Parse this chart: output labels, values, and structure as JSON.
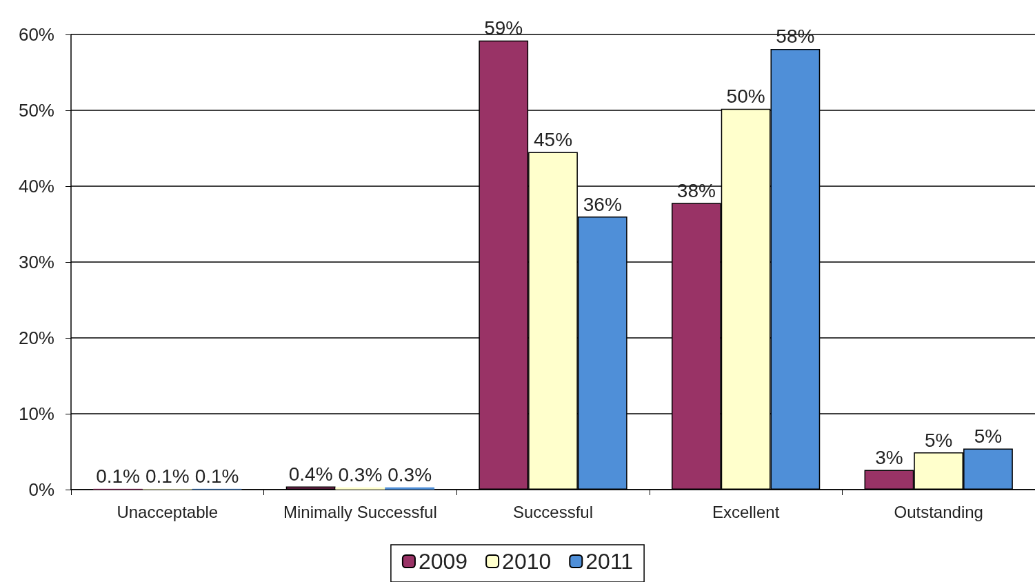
{
  "chart_data": {
    "type": "bar",
    "categories": [
      "Unacceptable",
      "Minimally Successful",
      "Successful",
      "Excellent",
      "Outstanding"
    ],
    "series": [
      {
        "name": "2009",
        "color": "#993366",
        "values": [
          0.1,
          0.4,
          59.2,
          37.8,
          2.6
        ],
        "value_labels": [
          "0.1%",
          "0.4%",
          "59%",
          "38%",
          "3%"
        ]
      },
      {
        "name": "2010",
        "color": "#ffffcc",
        "values": [
          0.1,
          0.3,
          44.5,
          50.2,
          4.9
        ],
        "value_labels": [
          "0.1%",
          "0.3%",
          "45%",
          "50%",
          "5%"
        ]
      },
      {
        "name": "2011",
        "color": "#4f8fd8",
        "values": [
          0.1,
          0.3,
          36.0,
          58.1,
          5.4
        ],
        "value_labels": [
          "0.1%",
          "0.3%",
          "36%",
          "58%",
          "5%"
        ]
      }
    ],
    "ylim": [
      0,
      60
    ],
    "yticks": [
      {
        "value": 0,
        "label": "0%"
      },
      {
        "value": 10,
        "label": "10%"
      },
      {
        "value": 20,
        "label": "20%"
      },
      {
        "value": 30,
        "label": "30%"
      },
      {
        "value": 40,
        "label": "40%"
      },
      {
        "value": 50,
        "label": "50%"
      },
      {
        "value": 60,
        "label": "60%"
      }
    ],
    "grid": "y",
    "legend": "bottom"
  }
}
